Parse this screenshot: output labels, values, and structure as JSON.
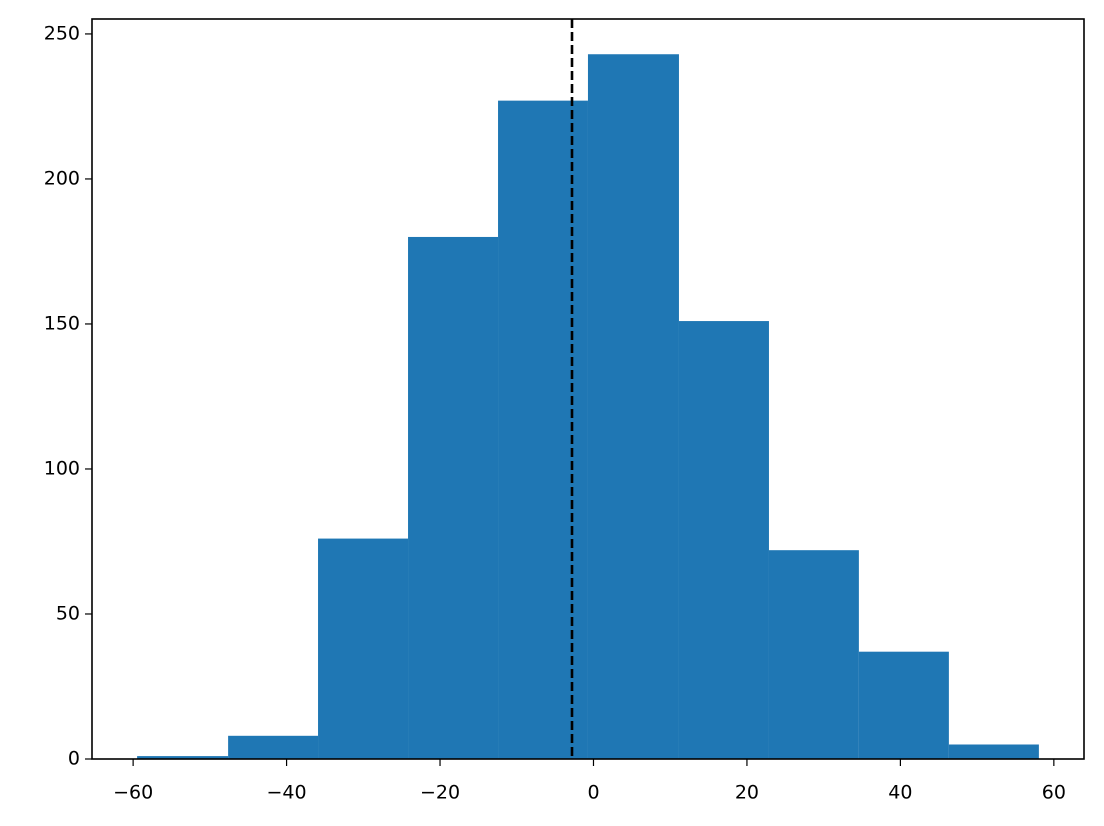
{
  "chart_data": {
    "type": "histogram",
    "bins": [
      -59.48,
      -47.62,
      -35.9,
      -24.17,
      -12.44,
      -0.72,
      11.14,
      22.87,
      34.59,
      46.32,
      58.05
    ],
    "values": [
      1,
      8,
      76,
      180,
      227,
      243,
      151,
      72,
      37,
      5
    ],
    "color": "#1f77b4",
    "vline": -2.8,
    "vline_color": "#000000",
    "xlim": [
      -65.36,
      63.93
    ],
    "xticks": [
      {
        "value": -60,
        "label": "−60"
      },
      {
        "value": -40,
        "label": "−40"
      },
      {
        "value": -20,
        "label": "−20"
      },
      0,
      20,
      40,
      60
    ],
    "ylim": [
      0,
      255.15
    ],
    "yticks": [
      0,
      50,
      100,
      150,
      200,
      250
    ],
    "grid": false
  }
}
